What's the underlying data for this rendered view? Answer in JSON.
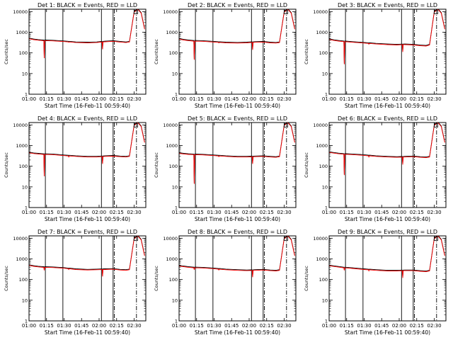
{
  "colors": {
    "events": "#000000",
    "lld": "#ff0000",
    "background": "#ffffff"
  },
  "shared": {
    "xlabel": "Start Time (16-Feb-11 00:59:40)",
    "ylabel": "Counts/sec",
    "x_ticks": [
      "01:00",
      "01:15",
      "01:30",
      "01:45",
      "02:00",
      "02:15",
      "02:30"
    ],
    "y_ticks": [
      "1",
      "10",
      "100",
      "1000",
      "10000"
    ],
    "xlim_minutes": [
      60,
      160
    ],
    "ylim": [
      1,
      13000
    ]
  },
  "chart_data": [
    {
      "type": "line",
      "title": "Det 1: BLACK = Events, RED = LLD",
      "ylabel": "Counts/sec",
      "xlabel": "Start Time (16-Feb-11 00:59:40)",
      "base": [
        [
          60,
          520
        ],
        [
          64,
          470
        ],
        [
          68,
          440
        ],
        [
          72,
          420
        ],
        [
          80,
          410
        ],
        [
          90,
          380
        ],
        [
          100,
          340
        ],
        [
          110,
          330
        ],
        [
          118,
          340
        ],
        [
          125,
          370
        ],
        [
          132,
          390
        ],
        [
          138,
          360
        ],
        [
          143,
          340
        ],
        [
          146,
          360
        ],
        [
          150,
          10000
        ],
        [
          153,
          14000
        ],
        [
          156,
          9000
        ],
        [
          159,
          1500
        ]
      ],
      "dips": [
        [
          73,
          60
        ],
        [
          94,
          350
        ],
        [
          118,
          170
        ],
        [
          123,
          160
        ]
      ],
      "vlines": [
        74,
        89,
        122,
        132
      ],
      "dashlines": [
        133,
        152
      ],
      "series": [
        {
          "name": "Events",
          "color": "#000000"
        },
        {
          "name": "LLD",
          "color": "#ff0000"
        }
      ]
    },
    {
      "type": "line",
      "title": "Det 2: BLACK = Events, RED = LLD",
      "ylabel": "Counts/sec",
      "xlabel": "Start Time (16-Feb-11 00:59:40)",
      "base": [
        [
          60,
          500
        ],
        [
          64,
          450
        ],
        [
          68,
          420
        ],
        [
          72,
          400
        ],
        [
          80,
          390
        ],
        [
          90,
          360
        ],
        [
          100,
          330
        ],
        [
          110,
          320
        ],
        [
          118,
          330
        ],
        [
          125,
          350
        ],
        [
          132,
          360
        ],
        [
          138,
          330
        ],
        [
          143,
          320
        ],
        [
          146,
          340
        ],
        [
          150,
          10000
        ],
        [
          153,
          14000
        ],
        [
          156,
          9000
        ],
        [
          159,
          1500
        ]
      ],
      "dips": [
        [
          73,
          50
        ],
        [
          94,
          330
        ],
        [
          118,
          160
        ],
        [
          123,
          150
        ]
      ],
      "vlines": [
        74,
        89,
        122,
        132
      ],
      "dashlines": [
        133,
        152
      ],
      "series": [
        {
          "name": "Events",
          "color": "#000000"
        },
        {
          "name": "LLD",
          "color": "#ff0000"
        }
      ]
    },
    {
      "type": "line",
      "title": "Det 3: BLACK = Events, RED = LLD",
      "ylabel": "Counts/sec",
      "xlabel": "Start Time (16-Feb-11 00:59:40)",
      "base": [
        [
          60,
          480
        ],
        [
          64,
          430
        ],
        [
          68,
          400
        ],
        [
          72,
          380
        ],
        [
          80,
          350
        ],
        [
          90,
          320
        ],
        [
          100,
          290
        ],
        [
          110,
          270
        ],
        [
          118,
          260
        ],
        [
          125,
          270
        ],
        [
          132,
          260
        ],
        [
          138,
          240
        ],
        [
          143,
          230
        ],
        [
          146,
          260
        ],
        [
          150,
          10000
        ],
        [
          153,
          14000
        ],
        [
          156,
          9000
        ],
        [
          159,
          1500
        ]
      ],
      "dips": [
        [
          73,
          30
        ],
        [
          94,
          280
        ],
        [
          118,
          150
        ],
        [
          123,
          120
        ]
      ],
      "vlines": [
        74,
        89,
        122,
        132
      ],
      "dashlines": [
        133,
        152
      ],
      "series": [
        {
          "name": "Events",
          "color": "#000000"
        },
        {
          "name": "LLD",
          "color": "#ff0000"
        }
      ]
    },
    {
      "type": "line",
      "title": "Det 4: BLACK = Events, RED = LLD",
      "ylabel": "Counts/sec",
      "xlabel": "Start Time (16-Feb-11 00:59:40)",
      "base": [
        [
          60,
          480
        ],
        [
          64,
          440
        ],
        [
          68,
          420
        ],
        [
          72,
          400
        ],
        [
          80,
          390
        ],
        [
          90,
          350
        ],
        [
          100,
          320
        ],
        [
          110,
          300
        ],
        [
          118,
          300
        ],
        [
          125,
          320
        ],
        [
          132,
          330
        ],
        [
          138,
          310
        ],
        [
          143,
          300
        ],
        [
          146,
          320
        ],
        [
          150,
          10000
        ],
        [
          153,
          14000
        ],
        [
          156,
          9000
        ],
        [
          159,
          1500
        ]
      ],
      "dips": [
        [
          73,
          35
        ],
        [
          94,
          300
        ],
        [
          118,
          150
        ],
        [
          123,
          140
        ]
      ],
      "vlines": [
        74,
        89,
        122,
        132
      ],
      "dashlines": [
        133,
        152
      ],
      "series": [
        {
          "name": "Events",
          "color": "#000000"
        },
        {
          "name": "LLD",
          "color": "#ff0000"
        }
      ]
    },
    {
      "type": "line",
      "title": "Det 5: BLACK = Events, RED = LLD",
      "ylabel": "Counts/sec",
      "xlabel": "Start Time (16-Feb-11 00:59:40)",
      "base": [
        [
          60,
          450
        ],
        [
          64,
          420
        ],
        [
          68,
          400
        ],
        [
          72,
          390
        ],
        [
          80,
          380
        ],
        [
          90,
          350
        ],
        [
          100,
          320
        ],
        [
          110,
          300
        ],
        [
          118,
          300
        ],
        [
          125,
          310
        ],
        [
          132,
          320
        ],
        [
          138,
          300
        ],
        [
          143,
          290
        ],
        [
          146,
          310
        ],
        [
          150,
          10000
        ],
        [
          153,
          14000
        ],
        [
          156,
          9000
        ],
        [
          159,
          1500
        ]
      ],
      "dips": [
        [
          73,
          15
        ],
        [
          94,
          310
        ],
        [
          118,
          150
        ],
        [
          123,
          140
        ]
      ],
      "vlines": [
        74,
        89,
        122,
        132
      ],
      "dashlines": [
        133,
        152
      ],
      "series": [
        {
          "name": "Events",
          "color": "#000000"
        },
        {
          "name": "LLD",
          "color": "#ff0000"
        }
      ]
    },
    {
      "type": "line",
      "title": "Det 6: BLACK = Events, RED = LLD",
      "ylabel": "Counts/sec",
      "xlabel": "Start Time (16-Feb-11 00:59:40)",
      "base": [
        [
          60,
          500
        ],
        [
          64,
          460
        ],
        [
          68,
          430
        ],
        [
          72,
          410
        ],
        [
          80,
          390
        ],
        [
          90,
          360
        ],
        [
          100,
          320
        ],
        [
          110,
          300
        ],
        [
          118,
          290
        ],
        [
          125,
          300
        ],
        [
          132,
          310
        ],
        [
          138,
          290
        ],
        [
          143,
          280
        ],
        [
          146,
          300
        ],
        [
          150,
          10000
        ],
        [
          153,
          14000
        ],
        [
          156,
          9000
        ],
        [
          159,
          1500
        ]
      ],
      "dips": [
        [
          73,
          40
        ],
        [
          94,
          300
        ],
        [
          118,
          140
        ],
        [
          123,
          130
        ]
      ],
      "vlines": [
        74,
        89,
        122,
        132
      ],
      "dashlines": [
        133,
        152
      ],
      "series": [
        {
          "name": "Events",
          "color": "#000000"
        },
        {
          "name": "LLD",
          "color": "#ff0000"
        }
      ]
    },
    {
      "type": "line",
      "title": "Det 7: BLACK = Events, RED = LLD",
      "ylabel": "Counts/sec",
      "xlabel": "Start Time (16-Feb-11 00:59:40)",
      "base": [
        [
          60,
          520
        ],
        [
          64,
          470
        ],
        [
          68,
          440
        ],
        [
          72,
          420
        ],
        [
          80,
          410
        ],
        [
          90,
          380
        ],
        [
          100,
          330
        ],
        [
          110,
          310
        ],
        [
          118,
          320
        ],
        [
          125,
          330
        ],
        [
          132,
          340
        ],
        [
          138,
          310
        ],
        [
          143,
          300
        ],
        [
          146,
          320
        ],
        [
          150,
          10000
        ],
        [
          153,
          14000
        ],
        [
          156,
          9000
        ],
        [
          159,
          1500
        ]
      ],
      "dips": [
        [
          73,
          300
        ],
        [
          94,
          330
        ],
        [
          118,
          160
        ],
        [
          123,
          150
        ]
      ],
      "vlines": [
        74,
        89,
        122,
        132
      ],
      "dashlines": [
        133,
        152
      ],
      "series": [
        {
          "name": "Events",
          "color": "#000000"
        },
        {
          "name": "LLD",
          "color": "#ff0000"
        }
      ]
    },
    {
      "type": "line",
      "title": "Det 8: BLACK = Events, RED = LLD",
      "ylabel": "Counts/sec",
      "xlabel": "Start Time (16-Feb-11 00:59:40)",
      "base": [
        [
          60,
          480
        ],
        [
          64,
          450
        ],
        [
          68,
          420
        ],
        [
          72,
          400
        ],
        [
          80,
          390
        ],
        [
          90,
          360
        ],
        [
          100,
          320
        ],
        [
          110,
          300
        ],
        [
          118,
          290
        ],
        [
          125,
          300
        ],
        [
          132,
          310
        ],
        [
          138,
          290
        ],
        [
          143,
          280
        ],
        [
          146,
          300
        ],
        [
          150,
          10000
        ],
        [
          153,
          14000
        ],
        [
          156,
          9000
        ],
        [
          159,
          1500
        ]
      ],
      "dips": [
        [
          73,
          320
        ],
        [
          94,
          310
        ],
        [
          118,
          150
        ],
        [
          123,
          140
        ]
      ],
      "vlines": [
        74,
        89,
        122,
        132
      ],
      "dashlines": [
        133,
        152
      ],
      "series": [
        {
          "name": "Events",
          "color": "#000000"
        },
        {
          "name": "LLD",
          "color": "#ff0000"
        }
      ]
    },
    {
      "type": "line",
      "title": "Det 9: BLACK = Events, RED = LLD",
      "ylabel": "Counts/sec",
      "xlabel": "Start Time (16-Feb-11 00:59:40)",
      "base": [
        [
          60,
          500
        ],
        [
          64,
          460
        ],
        [
          68,
          430
        ],
        [
          72,
          400
        ],
        [
          80,
          370
        ],
        [
          90,
          330
        ],
        [
          100,
          300
        ],
        [
          110,
          280
        ],
        [
          118,
          280
        ],
        [
          125,
          290
        ],
        [
          132,
          290
        ],
        [
          138,
          270
        ],
        [
          143,
          260
        ],
        [
          146,
          280
        ],
        [
          150,
          10000
        ],
        [
          153,
          14000
        ],
        [
          156,
          9000
        ],
        [
          159,
          1500
        ]
      ],
      "dips": [
        [
          73,
          300
        ],
        [
          94,
          280
        ],
        [
          118,
          140
        ],
        [
          123,
          130
        ]
      ],
      "vlines": [
        74,
        89,
        122,
        132
      ],
      "dashlines": [
        133,
        152
      ],
      "series": [
        {
          "name": "Events",
          "color": "#000000"
        },
        {
          "name": "LLD",
          "color": "#ff0000"
        }
      ]
    }
  ]
}
